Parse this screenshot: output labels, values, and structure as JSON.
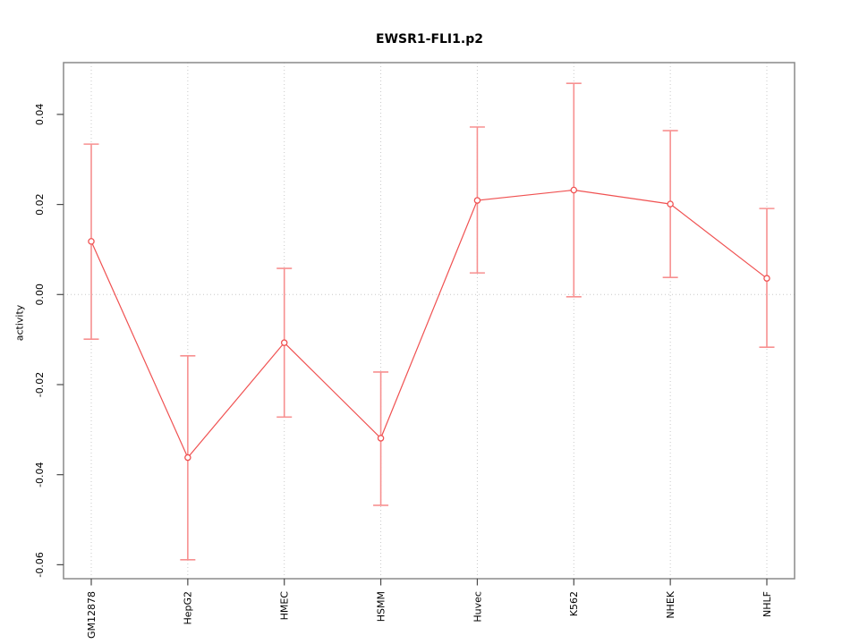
{
  "chart_data": {
    "type": "line",
    "title": "EWSR1-FLI1.p2",
    "xlabel": "",
    "ylabel": "activity",
    "categories": [
      "GM12878",
      "HepG2",
      "HMEC",
      "HSMM",
      "Huvec",
      "K562",
      "NHEK",
      "NHLF"
    ],
    "series": [
      {
        "name": "activity",
        "values": [
          0.0118,
          -0.0362,
          -0.0107,
          -0.0319,
          0.0209,
          0.0232,
          0.0201,
          0.0036
        ],
        "upper": [
          0.0334,
          -0.0136,
          0.0058,
          -0.0172,
          0.0372,
          0.0469,
          0.0364,
          0.0191
        ],
        "lower": [
          -0.0099,
          -0.0589,
          -0.0272,
          -0.0468,
          0.0048,
          -0.0005,
          0.0038,
          -0.0117
        ]
      }
    ],
    "yticks": [
      0.04,
      0.02,
      0.0,
      -0.02,
      -0.04,
      -0.06
    ],
    "ytick_labels": [
      "0.04",
      "0.02",
      "0.00",
      "-0.02",
      "-0.04",
      "-0.06"
    ],
    "ylim": [
      -0.0631,
      0.0515
    ],
    "grid": {
      "vertical_dotted_at_categories": true,
      "horizontal_dotted_at_zero": true
    },
    "legend": "none",
    "marker": "open-circle",
    "colors": {
      "series": "#f05252",
      "error_bar": "#f79090",
      "grid": "#c9c9c9",
      "box": "#8a8a8a",
      "tick": "#4a4a4a",
      "text": "#000000",
      "background": "#ffffff"
    }
  }
}
